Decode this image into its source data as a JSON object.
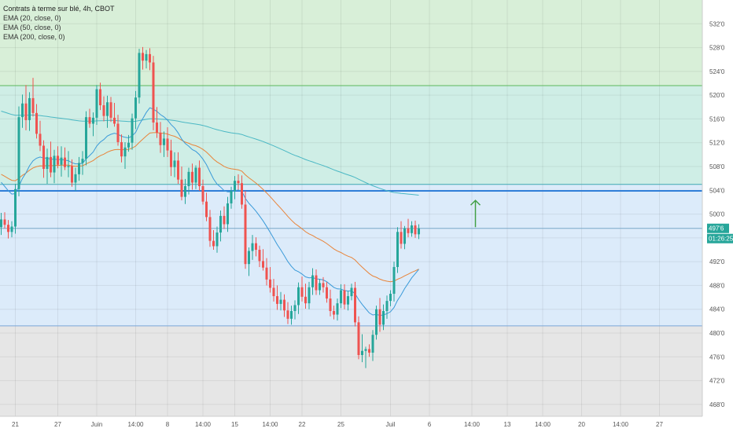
{
  "legend": {
    "title": "Contrats à terme sur blé, 4h, CBOT",
    "ema20": "EMA (20, close, 0)",
    "ema50": "EMA (50, close, 0)",
    "ema200": "EMA (200, close, 0)"
  },
  "price_badge": {
    "value": "497'6",
    "countdown": "01:26:25",
    "color": "#26a69a"
  },
  "colors": {
    "up": "#26a69a",
    "down": "#ef5350",
    "ema20": "#3a9ad9",
    "ema50": "#e8843a",
    "ema200": "#4bb8c4",
    "zone_upper": "#d8efd8",
    "zone_band": "#cfeee6",
    "zone_lower": "#dcebfa",
    "zone_bottom": "#e6e6e6",
    "line_resistance": "#2f7ed8",
    "arrow": "#43a047"
  },
  "chart_data": {
    "type": "candlestick",
    "title": "Contrats à terme sur blé, 4h, CBOT",
    "ylim": [
      466,
      536
    ],
    "y_ticks": [
      "532'0",
      "528'0",
      "524'0",
      "520'0",
      "516'0",
      "512'0",
      "508'0",
      "504'0",
      "500'0",
      "496'0",
      "492'0",
      "488'0",
      "484'0",
      "480'0",
      "476'0",
      "472'0",
      "468'0"
    ],
    "y_tick_values": [
      532,
      528,
      524,
      520,
      516,
      512,
      508,
      504,
      500,
      496,
      492,
      488,
      484,
      480,
      476,
      472,
      468
    ],
    "x_ticks": [
      "21",
      "27",
      "Juin",
      "14:00",
      "8",
      "14:00",
      "15",
      "14:00",
      "22",
      "25",
      "Juil",
      "6",
      "14:00",
      "13",
      "14:00",
      "20",
      "14:00",
      "27"
    ],
    "x_tick_index": [
      4,
      16,
      27,
      38,
      47,
      57,
      66,
      76,
      85,
      96,
      110,
      121,
      133,
      143,
      153,
      164,
      175,
      186
    ],
    "levels": {
      "zone_top": 536,
      "zone_upper_edge": 521.6,
      "band_top": 505,
      "resistance": 503.9,
      "current_price": 497.6,
      "zone_lower_edge": 481.2
    },
    "candles": [
      {
        "o": 497.8,
        "h": 500.2,
        "l": 496.5,
        "c": 499.1
      },
      {
        "o": 499.1,
        "h": 500.3,
        "l": 497.6,
        "c": 498.2
      },
      {
        "o": 498.2,
        "h": 499.0,
        "l": 495.9,
        "c": 497.0
      },
      {
        "o": 497.0,
        "h": 498.8,
        "l": 496.1,
        "c": 497.9
      },
      {
        "o": 497.9,
        "h": 505.1,
        "l": 496.7,
        "c": 504.2
      },
      {
        "o": 504.2,
        "h": 518.1,
        "l": 503.0,
        "c": 516.3
      },
      {
        "o": 516.3,
        "h": 520.1,
        "l": 514.5,
        "c": 518.6
      },
      {
        "o": 518.6,
        "h": 521.7,
        "l": 514.1,
        "c": 515.8
      },
      {
        "o": 515.8,
        "h": 520.5,
        "l": 514.0,
        "c": 519.5
      },
      {
        "o": 519.5,
        "h": 522.9,
        "l": 516.4,
        "c": 517.0
      },
      {
        "o": 517.0,
        "h": 518.5,
        "l": 512.7,
        "c": 513.5
      },
      {
        "o": 513.5,
        "h": 515.7,
        "l": 510.6,
        "c": 511.5
      },
      {
        "o": 511.5,
        "h": 512.4,
        "l": 506.1,
        "c": 507.6
      },
      {
        "o": 507.6,
        "h": 511.0,
        "l": 505.1,
        "c": 509.6
      },
      {
        "o": 509.6,
        "h": 512.2,
        "l": 506.2,
        "c": 507.0
      },
      {
        "o": 507.0,
        "h": 510.8,
        "l": 505.2,
        "c": 509.8
      },
      {
        "o": 509.8,
        "h": 511.4,
        "l": 507.7,
        "c": 508.3
      },
      {
        "o": 508.3,
        "h": 511.4,
        "l": 506.3,
        "c": 509.5
      },
      {
        "o": 509.5,
        "h": 511.2,
        "l": 507.4,
        "c": 507.9
      },
      {
        "o": 507.9,
        "h": 510.6,
        "l": 506.2,
        "c": 508.1
      },
      {
        "o": 508.1,
        "h": 509.2,
        "l": 504.6,
        "c": 505.3
      },
      {
        "o": 505.3,
        "h": 507.8,
        "l": 503.9,
        "c": 506.7
      },
      {
        "o": 506.7,
        "h": 509.6,
        "l": 505.6,
        "c": 508.6
      },
      {
        "o": 508.6,
        "h": 510.6,
        "l": 506.6,
        "c": 509.3
      },
      {
        "o": 509.3,
        "h": 517.3,
        "l": 508.2,
        "c": 516.3
      },
      {
        "o": 516.3,
        "h": 517.7,
        "l": 514.5,
        "c": 515.2
      },
      {
        "o": 515.2,
        "h": 517.1,
        "l": 513.1,
        "c": 516.2
      },
      {
        "o": 516.2,
        "h": 521.7,
        "l": 515.0,
        "c": 521.0
      },
      {
        "o": 521.0,
        "h": 522.1,
        "l": 517.5,
        "c": 518.3
      },
      {
        "o": 518.3,
        "h": 519.8,
        "l": 515.6,
        "c": 516.5
      },
      {
        "o": 516.5,
        "h": 519.9,
        "l": 514.5,
        "c": 518.8
      },
      {
        "o": 518.8,
        "h": 519.7,
        "l": 515.5,
        "c": 516.2
      },
      {
        "o": 516.2,
        "h": 518.7,
        "l": 514.7,
        "c": 515.2
      },
      {
        "o": 515.2,
        "h": 516.7,
        "l": 511.5,
        "c": 512.1
      },
      {
        "o": 512.1,
        "h": 513.4,
        "l": 508.7,
        "c": 509.7
      },
      {
        "o": 509.7,
        "h": 512.1,
        "l": 507.6,
        "c": 511.2
      },
      {
        "o": 511.2,
        "h": 513.3,
        "l": 510.5,
        "c": 512.0
      },
      {
        "o": 512.0,
        "h": 516.9,
        "l": 510.8,
        "c": 516.1
      },
      {
        "o": 516.1,
        "h": 520.7,
        "l": 514.3,
        "c": 519.6
      },
      {
        "o": 519.6,
        "h": 527.8,
        "l": 518.6,
        "c": 527.1
      },
      {
        "o": 527.1,
        "h": 528.1,
        "l": 524.3,
        "c": 525.8
      },
      {
        "o": 525.8,
        "h": 527.6,
        "l": 524.5,
        "c": 526.9
      },
      {
        "o": 526.9,
        "h": 527.9,
        "l": 524.2,
        "c": 525.5
      },
      {
        "o": 525.5,
        "h": 526.6,
        "l": 514.1,
        "c": 515.4
      },
      {
        "o": 515.4,
        "h": 518.0,
        "l": 512.8,
        "c": 513.7
      },
      {
        "o": 513.7,
        "h": 515.5,
        "l": 510.3,
        "c": 511.6
      },
      {
        "o": 511.6,
        "h": 513.9,
        "l": 509.6,
        "c": 512.7
      },
      {
        "o": 512.7,
        "h": 514.6,
        "l": 509.6,
        "c": 510.7
      },
      {
        "o": 510.7,
        "h": 512.5,
        "l": 506.4,
        "c": 507.9
      },
      {
        "o": 507.9,
        "h": 510.4,
        "l": 506.2,
        "c": 509.0
      },
      {
        "o": 509.0,
        "h": 510.4,
        "l": 505.1,
        "c": 505.8
      },
      {
        "o": 505.8,
        "h": 508.0,
        "l": 502.3,
        "c": 502.9
      },
      {
        "o": 502.9,
        "h": 505.9,
        "l": 501.7,
        "c": 504.7
      },
      {
        "o": 504.7,
        "h": 507.8,
        "l": 503.3,
        "c": 507.1
      },
      {
        "o": 507.1,
        "h": 508.5,
        "l": 504.1,
        "c": 505.3
      },
      {
        "o": 505.3,
        "h": 508.2,
        "l": 504.2,
        "c": 507.8
      },
      {
        "o": 507.8,
        "h": 509.0,
        "l": 503.9,
        "c": 504.7
      },
      {
        "o": 504.7,
        "h": 505.8,
        "l": 501.6,
        "c": 502.1
      },
      {
        "o": 502.1,
        "h": 503.6,
        "l": 498.8,
        "c": 499.5
      },
      {
        "o": 499.5,
        "h": 500.7,
        "l": 494.5,
        "c": 495.5
      },
      {
        "o": 495.5,
        "h": 497.3,
        "l": 494.0,
        "c": 494.6
      },
      {
        "o": 494.6,
        "h": 497.9,
        "l": 493.5,
        "c": 496.9
      },
      {
        "o": 496.9,
        "h": 500.6,
        "l": 495.4,
        "c": 499.7
      },
      {
        "o": 499.7,
        "h": 501.3,
        "l": 497.5,
        "c": 498.3
      },
      {
        "o": 498.3,
        "h": 502.9,
        "l": 497.0,
        "c": 501.8
      },
      {
        "o": 501.8,
        "h": 504.6,
        "l": 500.9,
        "c": 503.9
      },
      {
        "o": 503.9,
        "h": 506.4,
        "l": 502.5,
        "c": 505.6
      },
      {
        "o": 505.6,
        "h": 506.7,
        "l": 504.1,
        "c": 505.2
      },
      {
        "o": 505.2,
        "h": 506.5,
        "l": 500.9,
        "c": 501.6
      },
      {
        "o": 501.6,
        "h": 503.9,
        "l": 490.8,
        "c": 491.6
      },
      {
        "o": 491.6,
        "h": 494.4,
        "l": 489.6,
        "c": 493.8
      },
      {
        "o": 493.8,
        "h": 496.5,
        "l": 492.3,
        "c": 495.1
      },
      {
        "o": 495.1,
        "h": 496.1,
        "l": 492.9,
        "c": 494.0
      },
      {
        "o": 494.0,
        "h": 494.7,
        "l": 491.1,
        "c": 492.1
      },
      {
        "o": 492.1,
        "h": 494.1,
        "l": 490.5,
        "c": 491.0
      },
      {
        "o": 491.0,
        "h": 492.6,
        "l": 488.0,
        "c": 489.0
      },
      {
        "o": 489.0,
        "h": 491.1,
        "l": 486.8,
        "c": 487.6
      },
      {
        "o": 487.6,
        "h": 489.1,
        "l": 485.3,
        "c": 486.2
      },
      {
        "o": 486.2,
        "h": 488.0,
        "l": 483.9,
        "c": 484.9
      },
      {
        "o": 484.9,
        "h": 486.9,
        "l": 483.8,
        "c": 485.6
      },
      {
        "o": 485.6,
        "h": 486.5,
        "l": 482.7,
        "c": 483.8
      },
      {
        "o": 483.8,
        "h": 485.2,
        "l": 481.5,
        "c": 482.4
      },
      {
        "o": 482.4,
        "h": 484.6,
        "l": 481.4,
        "c": 483.7
      },
      {
        "o": 483.7,
        "h": 485.5,
        "l": 482.3,
        "c": 484.7
      },
      {
        "o": 484.7,
        "h": 488.5,
        "l": 483.2,
        "c": 487.7
      },
      {
        "o": 487.7,
        "h": 489.5,
        "l": 485.3,
        "c": 486.1
      },
      {
        "o": 486.1,
        "h": 488.3,
        "l": 484.1,
        "c": 485.0
      },
      {
        "o": 485.0,
        "h": 488.6,
        "l": 484.0,
        "c": 487.7
      },
      {
        "o": 487.7,
        "h": 490.9,
        "l": 486.4,
        "c": 489.7
      },
      {
        "o": 489.7,
        "h": 490.7,
        "l": 486.4,
        "c": 487.2
      },
      {
        "o": 487.2,
        "h": 489.1,
        "l": 486.4,
        "c": 488.4
      },
      {
        "o": 488.4,
        "h": 489.4,
        "l": 486.8,
        "c": 487.7
      },
      {
        "o": 487.7,
        "h": 488.6,
        "l": 485.1,
        "c": 485.8
      },
      {
        "o": 485.8,
        "h": 487.3,
        "l": 482.8,
        "c": 483.7
      },
      {
        "o": 483.7,
        "h": 484.6,
        "l": 482.3,
        "c": 483.1
      },
      {
        "o": 483.1,
        "h": 485.8,
        "l": 482.1,
        "c": 485.0
      },
      {
        "o": 485.0,
        "h": 488.2,
        "l": 484.2,
        "c": 487.2
      },
      {
        "o": 487.2,
        "h": 488.2,
        "l": 484.0,
        "c": 484.8
      },
      {
        "o": 484.8,
        "h": 487.1,
        "l": 483.8,
        "c": 486.2
      },
      {
        "o": 486.2,
        "h": 488.3,
        "l": 485.5,
        "c": 487.6
      },
      {
        "o": 487.6,
        "h": 488.6,
        "l": 481.1,
        "c": 481.8
      },
      {
        "o": 481.8,
        "h": 482.8,
        "l": 475.6,
        "c": 476.3
      },
      {
        "o": 476.3,
        "h": 479.8,
        "l": 475.1,
        "c": 477.0
      },
      {
        "o": 477.0,
        "h": 477.7,
        "l": 474.1,
        "c": 477.3
      },
      {
        "o": 477.3,
        "h": 478.1,
        "l": 476.0,
        "c": 476.7
      },
      {
        "o": 476.7,
        "h": 480.5,
        "l": 475.3,
        "c": 479.7
      },
      {
        "o": 479.7,
        "h": 484.6,
        "l": 478.9,
        "c": 484.0
      },
      {
        "o": 484.0,
        "h": 485.9,
        "l": 480.2,
        "c": 481.4
      },
      {
        "o": 481.4,
        "h": 484.8,
        "l": 480.5,
        "c": 483.7
      },
      {
        "o": 483.7,
        "h": 486.3,
        "l": 482.4,
        "c": 485.4
      },
      {
        "o": 485.4,
        "h": 487.2,
        "l": 484.5,
        "c": 486.6
      },
      {
        "o": 486.6,
        "h": 492.0,
        "l": 485.3,
        "c": 491.1
      },
      {
        "o": 491.1,
        "h": 497.8,
        "l": 490.1,
        "c": 497.0
      },
      {
        "o": 497.0,
        "h": 498.8,
        "l": 494.2,
        "c": 495.0
      },
      {
        "o": 495.0,
        "h": 498.0,
        "l": 494.1,
        "c": 497.6
      },
      {
        "o": 497.6,
        "h": 499.2,
        "l": 496.1,
        "c": 496.8
      },
      {
        "o": 496.8,
        "h": 498.8,
        "l": 496.2,
        "c": 498.1
      },
      {
        "o": 498.1,
        "h": 498.9,
        "l": 496.0,
        "c": 496.6
      },
      {
        "o": 496.6,
        "h": 498.3,
        "l": 495.8,
        "c": 497.6
      }
    ],
    "annotations": [
      {
        "type": "arrow-up",
        "at_index": 134,
        "from": 497.8,
        "to": 502.3
      }
    ]
  }
}
